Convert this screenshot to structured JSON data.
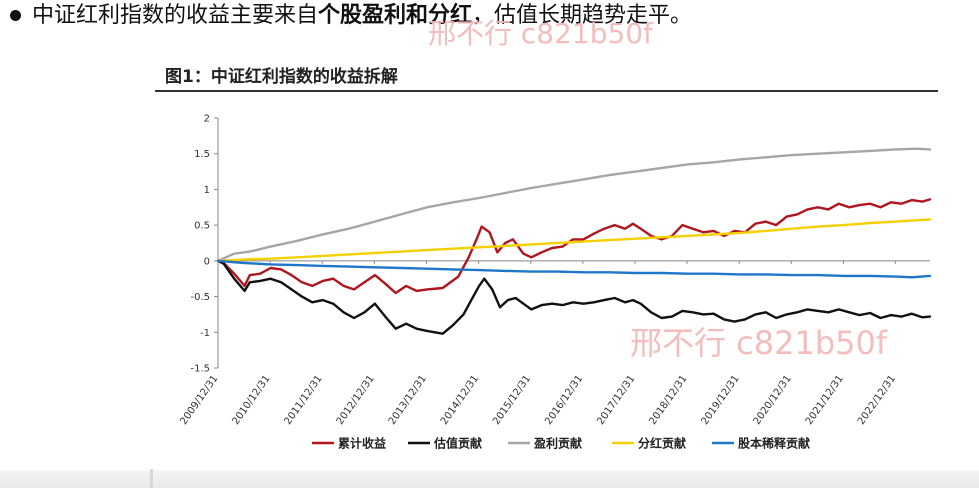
{
  "headline": {
    "normal_1": "中证红利指数的收益主要来自",
    "bold": "个股盈利和分红",
    "normal_2": "，估值长期趋势走平。"
  },
  "figure_title": "图1：中证红利指数的收益拆解",
  "watermark": [
    "邢不行 c821b50f",
    "邢不行 c821b50f"
  ],
  "chart_data": {
    "type": "line",
    "title": "",
    "xlabel": "",
    "ylabel": "",
    "ylim": [
      -1.5,
      2
    ],
    "yticks": [
      "-1.5",
      "-1",
      "-0.5",
      "0",
      "0.5",
      "1",
      "1.5",
      "2"
    ],
    "x_tick_labels": [
      "2009/12/31",
      "2010/12/31",
      "2011/12/31",
      "2012/12/31",
      "2013/12/31",
      "2014/12/31",
      "2015/12/31",
      "2016/12/31",
      "2017/12/31",
      "2018/12/31",
      "2019/12/31",
      "2020/12/31",
      "2021/12/31",
      "2022/12/31"
    ],
    "xrange": [
      2009.99,
      2023.65
    ],
    "legend_position": "bottom",
    "grid": false,
    "series": [
      {
        "name": "累计收益",
        "color": "#b0151e",
        "points": [
          [
            2009.99,
            0
          ],
          [
            2010.1,
            -0.03
          ],
          [
            2010.3,
            -0.18
          ],
          [
            2010.5,
            -0.35
          ],
          [
            2010.6,
            -0.2
          ],
          [
            2010.8,
            -0.18
          ],
          [
            2011.0,
            -0.1
          ],
          [
            2011.2,
            -0.12
          ],
          [
            2011.4,
            -0.2
          ],
          [
            2011.6,
            -0.3
          ],
          [
            2011.8,
            -0.35
          ],
          [
            2012.0,
            -0.28
          ],
          [
            2012.2,
            -0.25
          ],
          [
            2012.4,
            -0.35
          ],
          [
            2012.6,
            -0.4
          ],
          [
            2012.8,
            -0.3
          ],
          [
            2013.0,
            -0.2
          ],
          [
            2013.2,
            -0.32
          ],
          [
            2013.4,
            -0.45
          ],
          [
            2013.6,
            -0.35
          ],
          [
            2013.8,
            -0.42
          ],
          [
            2014.0,
            -0.4
          ],
          [
            2014.3,
            -0.38
          ],
          [
            2014.6,
            -0.22
          ],
          [
            2014.8,
            0.05
          ],
          [
            2014.95,
            0.3
          ],
          [
            2015.05,
            0.48
          ],
          [
            2015.2,
            0.4
          ],
          [
            2015.35,
            0.12
          ],
          [
            2015.5,
            0.25
          ],
          [
            2015.65,
            0.3
          ],
          [
            2015.75,
            0.2
          ],
          [
            2015.85,
            0.1
          ],
          [
            2016.0,
            0.05
          ],
          [
            2016.2,
            0.12
          ],
          [
            2016.4,
            0.18
          ],
          [
            2016.6,
            0.2
          ],
          [
            2016.8,
            0.3
          ],
          [
            2017.0,
            0.3
          ],
          [
            2017.2,
            0.38
          ],
          [
            2017.4,
            0.45
          ],
          [
            2017.6,
            0.5
          ],
          [
            2017.8,
            0.45
          ],
          [
            2017.95,
            0.52
          ],
          [
            2018.1,
            0.45
          ],
          [
            2018.3,
            0.35
          ],
          [
            2018.5,
            0.3
          ],
          [
            2018.7,
            0.35
          ],
          [
            2018.9,
            0.5
          ],
          [
            2019.1,
            0.45
          ],
          [
            2019.3,
            0.4
          ],
          [
            2019.5,
            0.42
          ],
          [
            2019.7,
            0.35
          ],
          [
            2019.9,
            0.42
          ],
          [
            2020.1,
            0.4
          ],
          [
            2020.3,
            0.52
          ],
          [
            2020.5,
            0.55
          ],
          [
            2020.7,
            0.5
          ],
          [
            2020.9,
            0.62
          ],
          [
            2021.1,
            0.65
          ],
          [
            2021.3,
            0.72
          ],
          [
            2021.5,
            0.75
          ],
          [
            2021.7,
            0.72
          ],
          [
            2021.9,
            0.8
          ],
          [
            2022.1,
            0.75
          ],
          [
            2022.3,
            0.78
          ],
          [
            2022.5,
            0.8
          ],
          [
            2022.7,
            0.75
          ],
          [
            2022.9,
            0.82
          ],
          [
            2023.1,
            0.8
          ],
          [
            2023.3,
            0.85
          ],
          [
            2023.5,
            0.83
          ],
          [
            2023.65,
            0.86
          ]
        ]
      },
      {
        "name": "估值贡献",
        "color": "#111111",
        "points": [
          [
            2009.99,
            0
          ],
          [
            2010.1,
            -0.04
          ],
          [
            2010.3,
            -0.25
          ],
          [
            2010.5,
            -0.42
          ],
          [
            2010.6,
            -0.3
          ],
          [
            2010.8,
            -0.28
          ],
          [
            2011.0,
            -0.25
          ],
          [
            2011.2,
            -0.3
          ],
          [
            2011.4,
            -0.4
          ],
          [
            2011.6,
            -0.5
          ],
          [
            2011.8,
            -0.58
          ],
          [
            2012.0,
            -0.55
          ],
          [
            2012.2,
            -0.6
          ],
          [
            2012.4,
            -0.72
          ],
          [
            2012.6,
            -0.8
          ],
          [
            2012.8,
            -0.72
          ],
          [
            2013.0,
            -0.6
          ],
          [
            2013.2,
            -0.78
          ],
          [
            2013.4,
            -0.95
          ],
          [
            2013.6,
            -0.88
          ],
          [
            2013.8,
            -0.95
          ],
          [
            2014.0,
            -0.98
          ],
          [
            2014.3,
            -1.02
          ],
          [
            2014.5,
            -0.9
          ],
          [
            2014.7,
            -0.75
          ],
          [
            2014.85,
            -0.55
          ],
          [
            2015.0,
            -0.35
          ],
          [
            2015.1,
            -0.25
          ],
          [
            2015.25,
            -0.4
          ],
          [
            2015.4,
            -0.65
          ],
          [
            2015.55,
            -0.55
          ],
          [
            2015.7,
            -0.52
          ],
          [
            2015.85,
            -0.6
          ],
          [
            2016.0,
            -0.68
          ],
          [
            2016.2,
            -0.62
          ],
          [
            2016.4,
            -0.6
          ],
          [
            2016.6,
            -0.62
          ],
          [
            2016.8,
            -0.58
          ],
          [
            2017.0,
            -0.6
          ],
          [
            2017.2,
            -0.58
          ],
          [
            2017.4,
            -0.55
          ],
          [
            2017.6,
            -0.52
          ],
          [
            2017.8,
            -0.58
          ],
          [
            2017.95,
            -0.55
          ],
          [
            2018.1,
            -0.6
          ],
          [
            2018.3,
            -0.72
          ],
          [
            2018.5,
            -0.8
          ],
          [
            2018.7,
            -0.78
          ],
          [
            2018.9,
            -0.7
          ],
          [
            2019.1,
            -0.72
          ],
          [
            2019.3,
            -0.75
          ],
          [
            2019.5,
            -0.74
          ],
          [
            2019.7,
            -0.82
          ],
          [
            2019.9,
            -0.85
          ],
          [
            2020.1,
            -0.82
          ],
          [
            2020.3,
            -0.75
          ],
          [
            2020.5,
            -0.72
          ],
          [
            2020.7,
            -0.8
          ],
          [
            2020.9,
            -0.75
          ],
          [
            2021.1,
            -0.72
          ],
          [
            2021.3,
            -0.68
          ],
          [
            2021.5,
            -0.7
          ],
          [
            2021.7,
            -0.72
          ],
          [
            2021.9,
            -0.68
          ],
          [
            2022.1,
            -0.72
          ],
          [
            2022.3,
            -0.76
          ],
          [
            2022.5,
            -0.73
          ],
          [
            2022.7,
            -0.8
          ],
          [
            2022.9,
            -0.76
          ],
          [
            2023.1,
            -0.78
          ],
          [
            2023.3,
            -0.74
          ],
          [
            2023.5,
            -0.79
          ],
          [
            2023.65,
            -0.78
          ]
        ]
      },
      {
        "name": "盈利贡献",
        "color": "#a6a6a6",
        "points": [
          [
            2009.99,
            0
          ],
          [
            2010.3,
            0.1
          ],
          [
            2010.6,
            0.13
          ],
          [
            2011.0,
            0.2
          ],
          [
            2011.5,
            0.28
          ],
          [
            2012.0,
            0.37
          ],
          [
            2012.5,
            0.45
          ],
          [
            2013.0,
            0.55
          ],
          [
            2013.5,
            0.65
          ],
          [
            2014.0,
            0.75
          ],
          [
            2014.5,
            0.82
          ],
          [
            2015.0,
            0.88
          ],
          [
            2015.5,
            0.95
          ],
          [
            2016.0,
            1.02
          ],
          [
            2016.5,
            1.08
          ],
          [
            2017.0,
            1.14
          ],
          [
            2017.5,
            1.2
          ],
          [
            2018.0,
            1.25
          ],
          [
            2018.5,
            1.3
          ],
          [
            2019.0,
            1.35
          ],
          [
            2019.5,
            1.38
          ],
          [
            2020.0,
            1.42
          ],
          [
            2020.5,
            1.45
          ],
          [
            2021.0,
            1.48
          ],
          [
            2021.5,
            1.5
          ],
          [
            2022.0,
            1.52
          ],
          [
            2022.5,
            1.54
          ],
          [
            2023.0,
            1.56
          ],
          [
            2023.4,
            1.57
          ],
          [
            2023.65,
            1.56
          ]
        ]
      },
      {
        "name": "分红贡献",
        "color": "#f5d000",
        "points": [
          [
            2009.99,
            0
          ],
          [
            2010.5,
            0.02
          ],
          [
            2011.0,
            0.03
          ],
          [
            2011.5,
            0.05
          ],
          [
            2012.0,
            0.07
          ],
          [
            2012.5,
            0.09
          ],
          [
            2013.0,
            0.11
          ],
          [
            2013.5,
            0.13
          ],
          [
            2014.0,
            0.15
          ],
          [
            2014.5,
            0.17
          ],
          [
            2015.0,
            0.19
          ],
          [
            2015.5,
            0.21
          ],
          [
            2016.0,
            0.23
          ],
          [
            2016.5,
            0.25
          ],
          [
            2017.0,
            0.27
          ],
          [
            2017.5,
            0.29
          ],
          [
            2018.0,
            0.31
          ],
          [
            2018.5,
            0.33
          ],
          [
            2019.0,
            0.35
          ],
          [
            2019.5,
            0.37
          ],
          [
            2020.0,
            0.39
          ],
          [
            2020.5,
            0.42
          ],
          [
            2021.0,
            0.45
          ],
          [
            2021.5,
            0.48
          ],
          [
            2022.0,
            0.5
          ],
          [
            2022.5,
            0.53
          ],
          [
            2023.0,
            0.55
          ],
          [
            2023.65,
            0.58
          ]
        ]
      },
      {
        "name": "股本稀释贡献",
        "color": "#1f77c8",
        "points": [
          [
            2009.99,
            0
          ],
          [
            2010.5,
            -0.03
          ],
          [
            2011.0,
            -0.05
          ],
          [
            2011.5,
            -0.06
          ],
          [
            2012.0,
            -0.07
          ],
          [
            2012.5,
            -0.08
          ],
          [
            2013.0,
            -0.09
          ],
          [
            2013.5,
            -0.1
          ],
          [
            2014.0,
            -0.11
          ],
          [
            2014.5,
            -0.12
          ],
          [
            2015.0,
            -0.13
          ],
          [
            2015.5,
            -0.14
          ],
          [
            2016.0,
            -0.15
          ],
          [
            2016.5,
            -0.15
          ],
          [
            2017.0,
            -0.16
          ],
          [
            2017.5,
            -0.16
          ],
          [
            2018.0,
            -0.17
          ],
          [
            2018.5,
            -0.17
          ],
          [
            2019.0,
            -0.18
          ],
          [
            2019.5,
            -0.18
          ],
          [
            2020.0,
            -0.19
          ],
          [
            2020.5,
            -0.19
          ],
          [
            2021.0,
            -0.2
          ],
          [
            2021.5,
            -0.2
          ],
          [
            2022.0,
            -0.21
          ],
          [
            2022.5,
            -0.21
          ],
          [
            2023.0,
            -0.22
          ],
          [
            2023.3,
            -0.23
          ],
          [
            2023.65,
            -0.21
          ]
        ]
      }
    ]
  }
}
